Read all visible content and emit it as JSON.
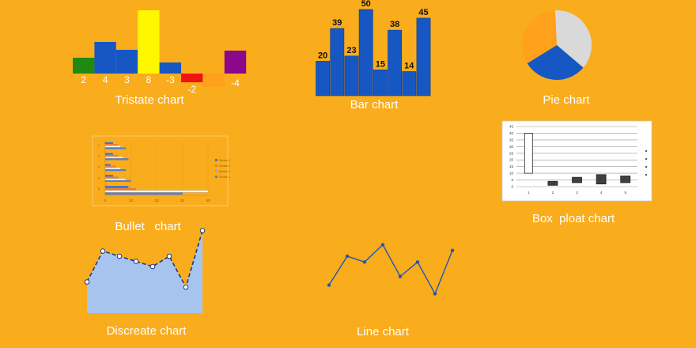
{
  "colors": {
    "background": "#F9AC1C",
    "blue": "#1657C4",
    "green": "#1E8A13",
    "yellow": "#FFF700",
    "red": "#F21212",
    "orange": "#FFA11B",
    "purple": "#8B078C",
    "grey": "#D9D9D9",
    "area": "#A7C4EE",
    "line": "#2155B5"
  },
  "labels": {
    "tristate": "Tristate chart",
    "bar": "Bar chart",
    "pie": "Pie chart",
    "bullet": "Bullet   chart",
    "box": "Box  ploat chart",
    "discrete": "Discreate chart",
    "line": "Line chart"
  },
  "chart_data": [
    {
      "id": "tristate",
      "type": "bar",
      "values": [
        2,
        4,
        3,
        8,
        -3,
        -2,
        null,
        -4
      ],
      "value_labels": [
        "2",
        "4",
        "3",
        "8",
        "-3",
        "-2",
        "",
        "-4"
      ],
      "colors": [
        "#1E8A13",
        "#1657C4",
        "#1657C4",
        "#FFF700",
        "#1657C4",
        "#F21212",
        "#FFA11B",
        "#8B078C"
      ]
    },
    {
      "id": "bar",
      "type": "bar",
      "values": [
        20,
        39,
        23,
        50,
        15,
        38,
        14,
        45
      ],
      "ylim": [
        0,
        50
      ]
    },
    {
      "id": "pie",
      "type": "pie",
      "values": [
        37,
        30,
        33
      ],
      "colors": [
        "#D9D9D9",
        "#1657C4",
        "#FFA11B"
      ]
    },
    {
      "id": "bullet",
      "type": "bar",
      "x_ticks": [
        "0",
        "10",
        "20",
        "30",
        "40"
      ],
      "categories": [
        "1",
        "2",
        "3",
        "4",
        "5"
      ],
      "series": [
        {
          "name": "Series 1",
          "values": [
            3,
            3,
            2,
            3,
            9
          ]
        },
        {
          "name": "Series 2",
          "values": [
            5,
            5,
            4,
            5,
            12
          ]
        },
        {
          "name": "Series 3",
          "values": [
            6,
            7,
            6,
            8,
            40
          ]
        },
        {
          "name": "Series 4",
          "values": [
            8,
            9,
            8,
            10,
            30
          ]
        }
      ],
      "xlim": [
        0,
        40
      ]
    },
    {
      "id": "box",
      "type": "box",
      "categories": [
        "1",
        "2",
        "3",
        "4",
        "5"
      ],
      "y_ticks": [
        "0",
        "5",
        "10",
        "15",
        "20",
        "25",
        "30",
        "35",
        "40",
        "45"
      ],
      "boxes": [
        {
          "low": 10,
          "high": 40,
          "filled": false
        },
        {
          "low": 1,
          "high": 4,
          "filled": true
        },
        {
          "low": 3,
          "high": 7,
          "filled": true
        },
        {
          "low": 2,
          "high": 9,
          "filled": true
        },
        {
          "low": 3,
          "high": 8,
          "filled": true
        }
      ],
      "ylim": [
        0,
        45
      ]
    },
    {
      "id": "discrete",
      "type": "area",
      "values": [
        3,
        9,
        8,
        7,
        6,
        8,
        2,
        13
      ]
    },
    {
      "id": "line",
      "type": "line",
      "values": [
        5,
        10,
        9,
        12,
        6.5,
        9,
        3.5,
        11
      ]
    }
  ]
}
